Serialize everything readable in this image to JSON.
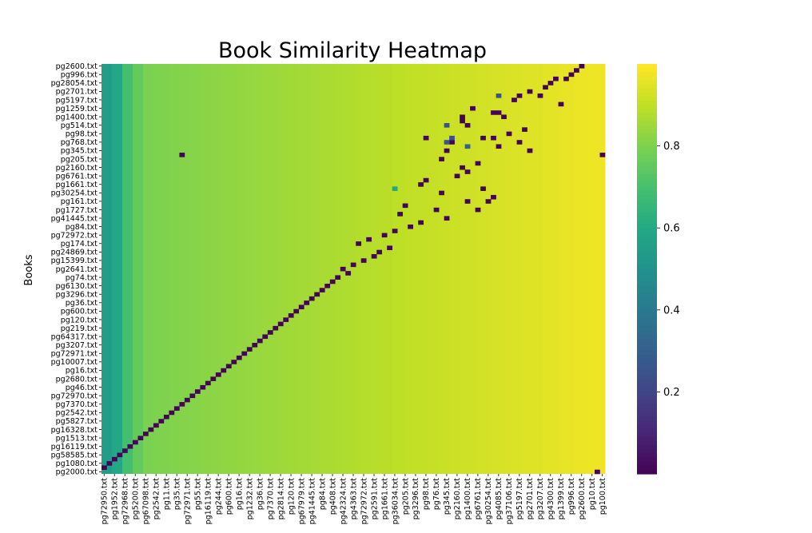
{
  "chart_data": {
    "type": "heatmap",
    "title": "Book Similarity Heatmap",
    "xlabel": "",
    "ylabel": "Books",
    "x_tick_labels": [
      "pg72950.txt",
      "pg1952.txt",
      "pg72968.txt",
      "pg5200.txt",
      "pg67098.txt",
      "pg2542.txt",
      "pg11.txt",
      "pg35.txt",
      "pg72971.txt",
      "pg55.txt",
      "pg16119.txt",
      "pg244.txt",
      "pg600.txt",
      "pg16.txt",
      "pg1232.txt",
      "pg36.txt",
      "pg7370.txt",
      "pg2814.txt",
      "pg120.txt",
      "pg67979.txt",
      "pg41445.txt",
      "pg84.txt",
      "pg408.txt",
      "pg42324.txt",
      "pg4363.txt",
      "pg72972.txt",
      "pg2591.txt",
      "pg1661.txt",
      "pg36034.txt",
      "pg205.txt",
      "pg3296.txt",
      "pg98.txt",
      "pg76.txt",
      "pg345.txt",
      "pg2160.txt",
      "pg1400.txt",
      "pg6761.txt",
      "pg30254.txt",
      "pg4085.txt",
      "pg37106.txt",
      "pg5197.txt",
      "pg2701.txt",
      "pg3207.txt",
      "pg4300.txt",
      "pg1399.txt",
      "pg996.txt",
      "pg2600.txt",
      "pg10.txt",
      "pg100.txt"
    ],
    "y_tick_labels": [
      "pg2600.txt",
      "pg996.txt",
      "pg28054.txt",
      "pg2701.txt",
      "pg5197.txt",
      "pg1259.txt",
      "pg1400.txt",
      "pg514.txt",
      "pg98.txt",
      "pg768.txt",
      "pg345.txt",
      "pg205.txt",
      "pg2160.txt",
      "pg6761.txt",
      "pg1661.txt",
      "pg30254.txt",
      "pg161.txt",
      "pg1727.txt",
      "pg41445.txt",
      "pg84.txt",
      "pg72972.txt",
      "pg174.txt",
      "pg24869.txt",
      "pg15399.txt",
      "pg2641.txt",
      "pg74.txt",
      "pg6130.txt",
      "pg3296.txt",
      "pg36.txt",
      "pg600.txt",
      "pg120.txt",
      "pg219.txt",
      "pg64317.txt",
      "pg3207.txt",
      "pg72971.txt",
      "pg10007.txt",
      "pg16.txt",
      "pg2680.txt",
      "pg46.txt",
      "pg72970.txt",
      "pg7370.txt",
      "pg2542.txt",
      "pg5827.txt",
      "pg16328.txt",
      "pg1513.txt",
      "pg16119.txt",
      "pg58585.txt",
      "pg1080.txt",
      "pg2000.txt"
    ],
    "colorbar": {
      "colormap": "viridis",
      "vmin": 0.0,
      "vmax": 1.0,
      "ticks": [
        0.2,
        0.4,
        0.6,
        0.8
      ]
    },
    "n_rows": 97,
    "n_cols": 97,
    "column_profile": [
      {
        "col_end": 2,
        "value": 0.55
      },
      {
        "col_end": 4,
        "value": 0.6
      },
      {
        "col_end": 6,
        "value": 0.7
      },
      {
        "col_end": 8,
        "value": 0.76
      },
      {
        "col_end": 97,
        "from": 0.8,
        "to": 0.98
      }
    ],
    "low_cells": [
      [
        0,
        92,
        0.01
      ],
      [
        1,
        91,
        0.01
      ],
      [
        2,
        90,
        0.01
      ],
      [
        3,
        87,
        0.01
      ],
      [
        3,
        89,
        0.01
      ],
      [
        4,
        86,
        0.01
      ],
      [
        5,
        85,
        0.01
      ],
      [
        6,
        82,
        0.01
      ],
      [
        7,
        80,
        0.01
      ],
      [
        7,
        84,
        0.01
      ],
      [
        8,
        79,
        0.01
      ],
      [
        9,
        88,
        0.01
      ],
      [
        10,
        71,
        0.01
      ],
      [
        11,
        76,
        0.01
      ],
      [
        11,
        75,
        0.01
      ],
      [
        12,
        69,
        0.01
      ],
      [
        12,
        77,
        0.01
      ],
      [
        13,
        69,
        0.01
      ],
      [
        14,
        70,
        0.01
      ],
      [
        15,
        81,
        0.01
      ],
      [
        16,
        78,
        0.01
      ],
      [
        17,
        62,
        0.01
      ],
      [
        17,
        73,
        0.01
      ],
      [
        17,
        75,
        0.01
      ],
      [
        18,
        67,
        0.01
      ],
      [
        18,
        80,
        0.01
      ],
      [
        19,
        76,
        0.01
      ],
      [
        20,
        66,
        0.01
      ],
      [
        20,
        82,
        0.01
      ],
      [
        21,
        96,
        0.01
      ],
      [
        21,
        15,
        0.01
      ],
      [
        22,
        65,
        0.01
      ],
      [
        23,
        72,
        0.01
      ],
      [
        24,
        69,
        0.01
      ],
      [
        25,
        70,
        0.01
      ],
      [
        26,
        68,
        0.01
      ],
      [
        27,
        62,
        0.01
      ],
      [
        28,
        61,
        0.01
      ],
      [
        29,
        73,
        0.01
      ],
      [
        30,
        65,
        0.01
      ],
      [
        31,
        75,
        0.01
      ],
      [
        32,
        70,
        0.01
      ],
      [
        32,
        74,
        0.01
      ],
      [
        33,
        58,
        0.01
      ],
      [
        34,
        64,
        0.01
      ],
      [
        34,
        72,
        0.01
      ],
      [
        35,
        57,
        0.01
      ],
      [
        36,
        66,
        0.01
      ],
      [
        37,
        61,
        0.01
      ],
      [
        38,
        59,
        0.01
      ],
      [
        39,
        56,
        0.01
      ],
      [
        40,
        54,
        0.01
      ],
      [
        41,
        51,
        0.01
      ],
      [
        42,
        49,
        0.01
      ],
      [
        43,
        55,
        0.01
      ],
      [
        44,
        53,
        0.01
      ],
      [
        45,
        52,
        0.01
      ],
      [
        46,
        50,
        0.01
      ],
      [
        47,
        48,
        0.01
      ],
      [
        48,
        46,
        0.01
      ],
      [
        49,
        47,
        0.01
      ],
      [
        50,
        45,
        0.01
      ],
      [
        51,
        44,
        0.01
      ],
      [
        52,
        43,
        0.01
      ],
      [
        53,
        42,
        0.01
      ],
      [
        54,
        41,
        0.01
      ],
      [
        55,
        40,
        0.01
      ],
      [
        56,
        39,
        0.01
      ],
      [
        57,
        38,
        0.01
      ],
      [
        58,
        37,
        0.01
      ],
      [
        59,
        36,
        0.01
      ],
      [
        60,
        35,
        0.01
      ],
      [
        61,
        34,
        0.01
      ],
      [
        62,
        33,
        0.01
      ],
      [
        63,
        32,
        0.01
      ],
      [
        64,
        31,
        0.01
      ],
      [
        65,
        30,
        0.01
      ],
      [
        66,
        29,
        0.01
      ],
      [
        67,
        28,
        0.01
      ],
      [
        68,
        27,
        0.01
      ],
      [
        69,
        26,
        0.01
      ],
      [
        70,
        25,
        0.01
      ],
      [
        71,
        24,
        0.01
      ],
      [
        72,
        23,
        0.01
      ],
      [
        73,
        22,
        0.01
      ],
      [
        74,
        21,
        0.01
      ],
      [
        75,
        20,
        0.01
      ],
      [
        76,
        19,
        0.01
      ],
      [
        77,
        18,
        0.01
      ],
      [
        78,
        17,
        0.01
      ],
      [
        79,
        16,
        0.01
      ],
      [
        80,
        15,
        0.01
      ],
      [
        81,
        14,
        0.01
      ],
      [
        82,
        13,
        0.01
      ],
      [
        83,
        12,
        0.01
      ],
      [
        84,
        11,
        0.01
      ],
      [
        85,
        10,
        0.01
      ],
      [
        86,
        9,
        0.01
      ],
      [
        87,
        8,
        0.01
      ],
      [
        88,
        7,
        0.01
      ],
      [
        89,
        6,
        0.01
      ],
      [
        90,
        5,
        0.01
      ],
      [
        91,
        4,
        0.01
      ],
      [
        92,
        3,
        0.01
      ],
      [
        93,
        2,
        0.01
      ],
      [
        94,
        1,
        0.01
      ],
      [
        95,
        0,
        0.01
      ],
      [
        96,
        95,
        0.01
      ],
      [
        14,
        66,
        0.25
      ],
      [
        7,
        76,
        0.25
      ],
      [
        17,
        67,
        0.25
      ],
      [
        18,
        66,
        0.25
      ],
      [
        19,
        70,
        0.3
      ],
      [
        29,
        56,
        0.6
      ]
    ]
  }
}
